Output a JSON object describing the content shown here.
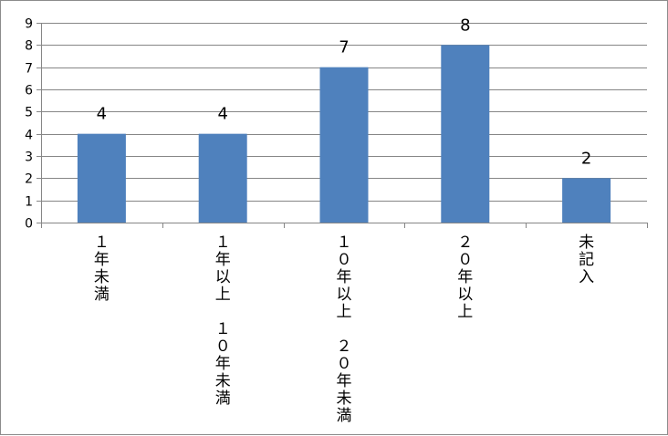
{
  "chart_data": {
    "type": "bar",
    "categories": [
      "１年未満",
      "１年以上　１０年未満",
      "１０年以上　２０年未満",
      "２０年以上",
      "未記入"
    ],
    "category_label_lines": [
      [
        "１年未満"
      ],
      [
        "１年以上",
        "１０年未満"
      ],
      [
        "１０年以上",
        "２０年未満"
      ],
      [
        "２０年以上"
      ],
      [
        "未記入"
      ]
    ],
    "values": [
      4,
      4,
      7,
      8,
      2
    ],
    "ylim": [
      0,
      9
    ],
    "yticks": [
      0,
      1,
      2,
      3,
      4,
      5,
      6,
      7,
      8,
      9
    ],
    "grid": true,
    "legend": "none",
    "title": "",
    "xlabel": "",
    "ylabel": "",
    "bar_color": "#4f81bd",
    "gridline_color": "#868686"
  }
}
